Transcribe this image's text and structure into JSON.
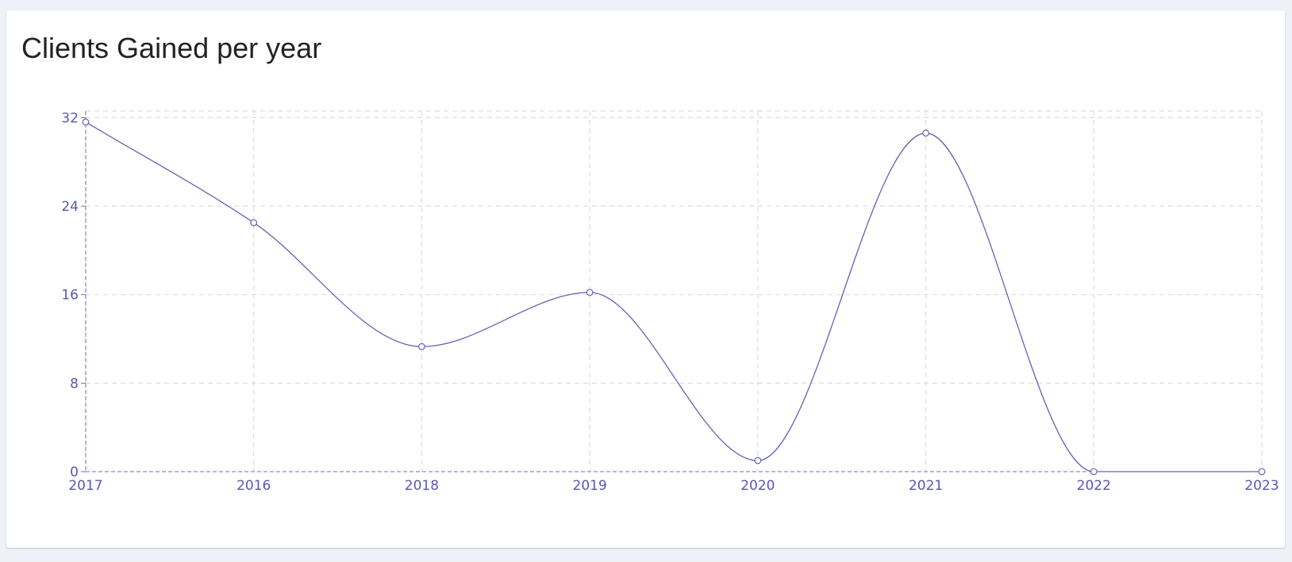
{
  "chart_data": {
    "type": "line",
    "title": "Clients Gained per year",
    "categories": [
      "2017",
      "2016",
      "2018",
      "2019",
      "2020",
      "2021",
      "2022",
      "2023"
    ],
    "series": [
      {
        "values": [
          31.6,
          22.5,
          11.3,
          16.2,
          1.0,
          30.6,
          0,
          0
        ]
      }
    ],
    "yticks": [
      0,
      8,
      16,
      24,
      32
    ],
    "ylim": [
      0,
      32.6
    ],
    "xlabel": "",
    "ylabel": "",
    "grid": true,
    "curve": "smooth",
    "colors": {
      "line": "#6363b6",
      "axis": "#6b6bc4",
      "grid": "#dddddd",
      "tick_text": "#5858b0",
      "point_fill": "#ffffff"
    }
  }
}
